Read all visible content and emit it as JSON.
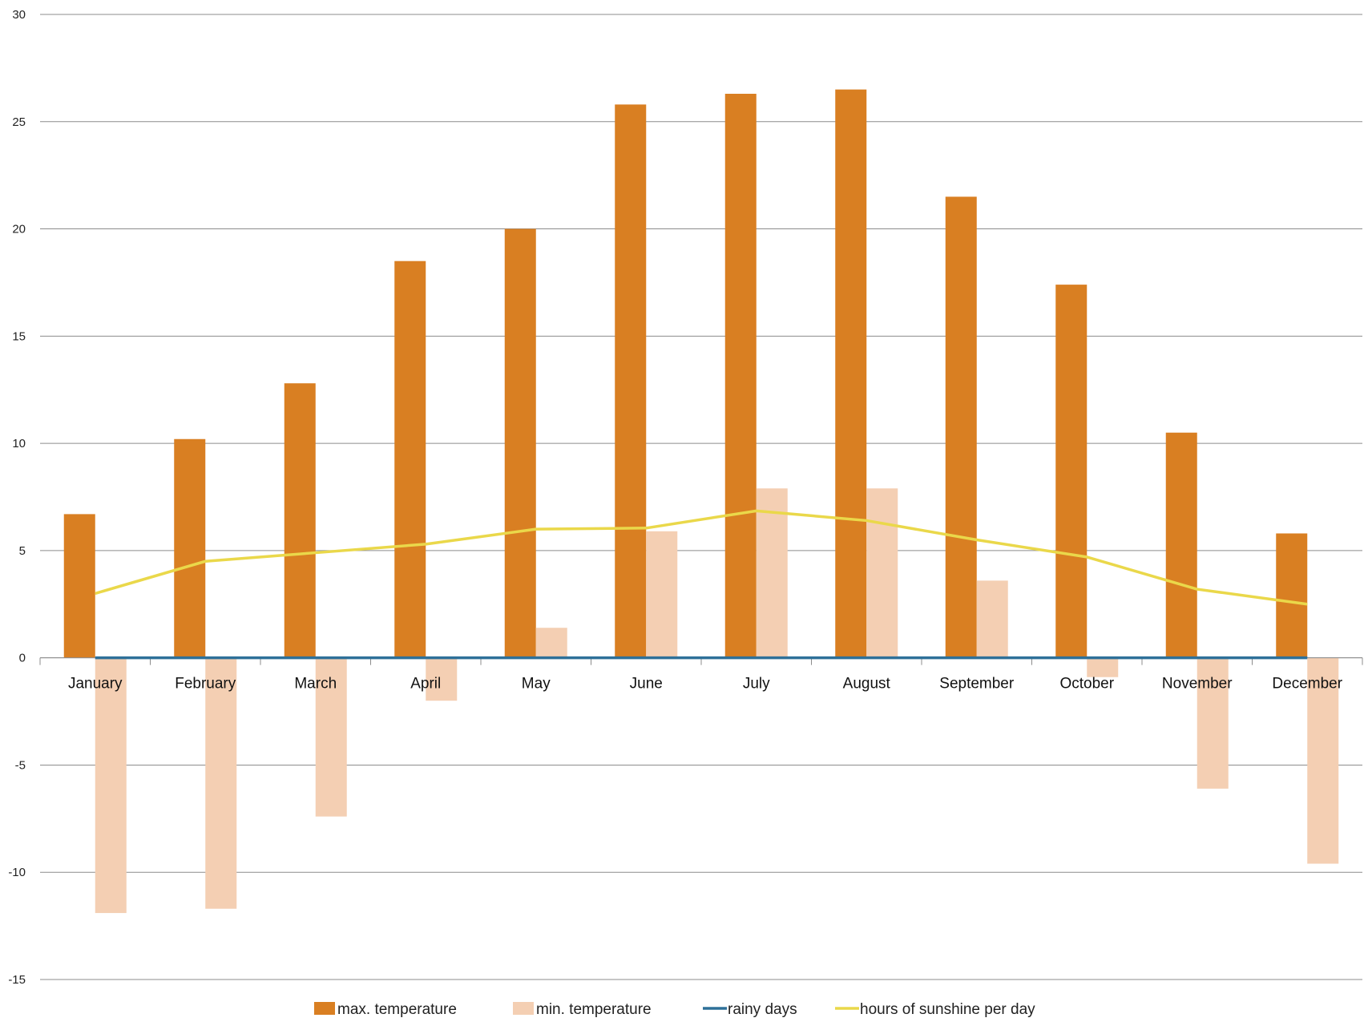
{
  "chart_data": {
    "type": "bar",
    "categories": [
      "January",
      "February",
      "March",
      "April",
      "May",
      "June",
      "July",
      "August",
      "September",
      "October",
      "November",
      "December"
    ],
    "series": [
      {
        "name": "max.  temperature",
        "kind": "bar",
        "color": "#d97f22",
        "values": [
          6.7,
          10.2,
          12.8,
          18.5,
          20.0,
          25.8,
          26.3,
          26.5,
          21.5,
          17.4,
          10.5,
          5.8
        ]
      },
      {
        "name": "min. temperature",
        "kind": "bar",
        "color": "#f4cfb3",
        "values": [
          -11.9,
          -11.7,
          -7.4,
          -2.0,
          1.4,
          5.9,
          7.9,
          7.9,
          3.6,
          -0.9,
          -6.1,
          -9.6
        ]
      },
      {
        "name": "rainy days",
        "kind": "line",
        "color": "#2e7099",
        "values": [
          0,
          0,
          0,
          0,
          0,
          0,
          0,
          0,
          0,
          0,
          0,
          0
        ]
      },
      {
        "name": "hours of sunshine per day",
        "kind": "line",
        "color": "#ead84a",
        "values": [
          3.0,
          4.5,
          4.9,
          5.3,
          6.0,
          6.05,
          6.85,
          6.4,
          5.5,
          4.7,
          3.2,
          2.5
        ]
      }
    ],
    "ylim": [
      -15,
      30
    ],
    "yticks": [
      -15,
      -10,
      -5,
      0,
      5,
      10,
      15,
      20,
      25,
      30
    ],
    "title": "",
    "xlabel": "",
    "ylabel": "",
    "grid": true,
    "legend_position": "bottom"
  }
}
